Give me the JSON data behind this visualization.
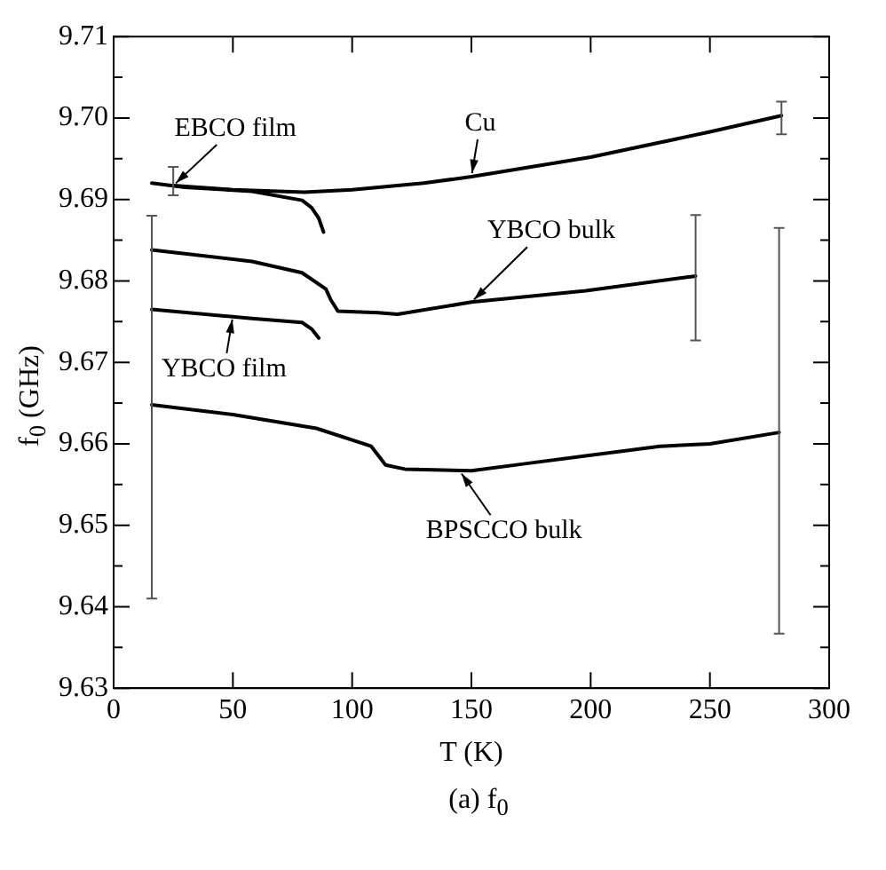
{
  "chart_data": {
    "type": "line",
    "title": "(a) f$_{0}$",
    "xlabel": "T (K)",
    "ylabel": "f$_{0}$ (GHz)",
    "xlim": [
      0,
      300
    ],
    "xticks": [
      0,
      50,
      100,
      150,
      200,
      250,
      300
    ],
    "ylim": [
      9.63,
      9.71
    ],
    "yticks": [
      {
        "value": 9.63,
        "label": "9.63"
      },
      {
        "value": 9.635,
        "label": null
      },
      {
        "value": 9.64,
        "label": "9.64"
      },
      {
        "value": 9.645,
        "label": null
      },
      {
        "value": 9.65,
        "label": "9.65"
      },
      {
        "value": 9.655,
        "label": null
      },
      {
        "value": 9.66,
        "label": "9.66"
      },
      {
        "value": 9.665,
        "label": null
      },
      {
        "value": 9.67,
        "label": "9.67"
      },
      {
        "value": 9.675,
        "label": null
      },
      {
        "value": 9.68,
        "label": "9.68"
      },
      {
        "value": 9.685,
        "label": null
      },
      {
        "value": 9.69,
        "label": "9.69"
      },
      {
        "value": 9.695,
        "label": null
      },
      {
        "value": 9.7,
        "label": "9.70"
      },
      {
        "value": 9.705,
        "label": null
      },
      {
        "value": 9.71,
        "label": "9.71"
      }
    ],
    "grid": false,
    "legend": false,
    "marker": "none",
    "line_style": "solid",
    "series": [
      {
        "color": "#000000",
        "x": [
          25,
          50,
          80,
          100,
          130,
          150,
          200,
          250,
          280
        ],
        "values": [
          9.6917,
          9.6912,
          9.6909,
          9.6912,
          9.692,
          9.6928,
          9.6952,
          9.6983,
          9.7003
        ],
        "errors": [
          [
            9.6905,
            9.694
          ],
          null,
          null,
          null,
          null,
          null,
          null,
          null,
          [
            9.698,
            9.702
          ]
        ]
      },
      {
        "color": "#000000",
        "x": [
          16,
          30,
          58,
          79,
          83,
          86,
          88
        ],
        "values": [
          9.692,
          9.6915,
          9.691,
          9.6899,
          9.689,
          9.6877,
          9.686
        ]
      },
      {
        "color": "#000000",
        "x": [
          16,
          58,
          79,
          89,
          91,
          94,
          111,
          119,
          150,
          198,
          244
        ],
        "values": [
          9.6838,
          9.6824,
          9.681,
          9.679,
          9.6777,
          9.6763,
          9.6761,
          9.6759,
          9.6774,
          9.6788,
          9.6806
        ],
        "errors": [
          null,
          null,
          null,
          null,
          null,
          null,
          null,
          null,
          null,
          null,
          [
            9.6727,
            9.6881
          ]
        ]
      },
      {
        "color": "#000000",
        "x": [
          16,
          58,
          79,
          83,
          86
        ],
        "values": [
          9.6765,
          9.6754,
          9.6749,
          9.6741,
          9.673
        ]
      },
      {
        "color": "#000000",
        "x": [
          16,
          50,
          85,
          108,
          114,
          122,
          150,
          171,
          200,
          229,
          250,
          279
        ],
        "values": [
          9.6648,
          9.6636,
          9.6619,
          9.6597,
          9.6574,
          9.6569,
          9.6567,
          9.6575,
          9.6586,
          9.6597,
          9.66,
          9.6614
        ],
        "errors": [
          [
            9.641,
            9.688
          ],
          null,
          null,
          null,
          null,
          null,
          null,
          null,
          null,
          null,
          null,
          [
            9.6367,
            9.6865
          ]
        ]
      }
    ],
    "annotations": [
      {
        "text": "EBCO film",
        "x": 25,
        "y": 9.6917
      },
      {
        "text": "Cu",
        "x": 150,
        "y": 9.6928
      },
      {
        "text": "YBCO bulk",
        "x": 150,
        "y": 9.6774
      },
      {
        "text": "YBCO film",
        "x": 50,
        "y": 9.6757
      },
      {
        "text": "BPSCCO bulk",
        "x": 145,
        "y": 9.6567
      }
    ]
  }
}
